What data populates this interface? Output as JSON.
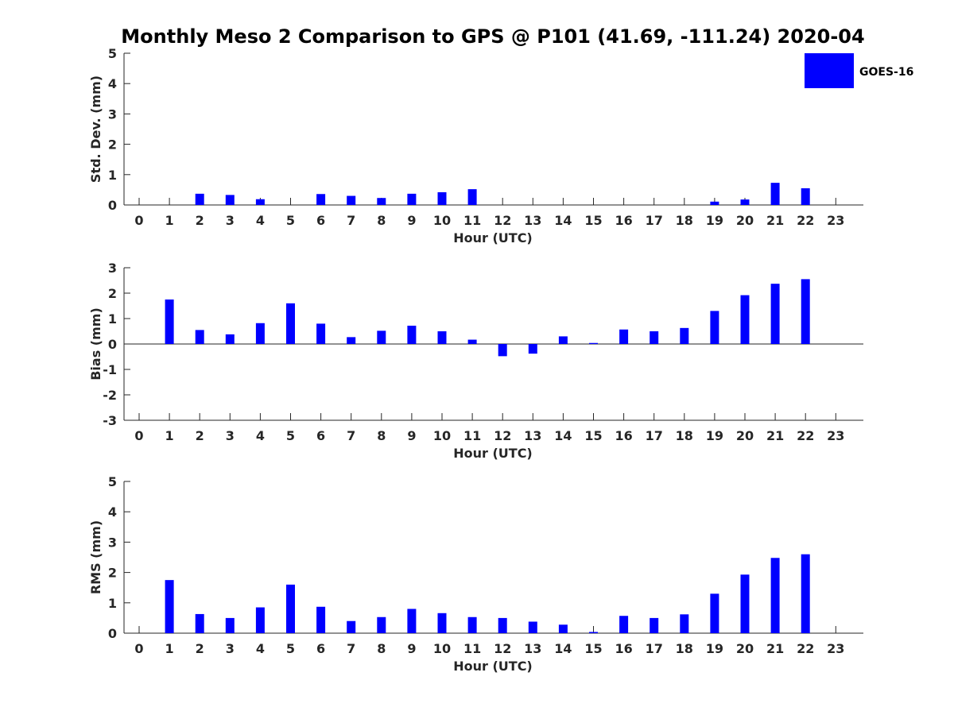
{
  "figure": {
    "title": "Monthly Meso 2 Comparison to GPS @ P101 (41.69, -111.24) 2020-04"
  },
  "legend": {
    "label": "GOES-16",
    "color": "#0000ff",
    "placement": "top-right"
  },
  "chart_data": [
    {
      "type": "bar",
      "name": "std-dev",
      "xlabel": "Hour (UTC)",
      "ylabel": "Std. Dev. (mm)",
      "ylim": [
        0,
        5
      ],
      "yticks": [
        0,
        1,
        2,
        3,
        4,
        5
      ],
      "categories": [
        "0",
        "1",
        "2",
        "3",
        "4",
        "5",
        "6",
        "7",
        "8",
        "9",
        "10",
        "11",
        "12",
        "13",
        "14",
        "15",
        "16",
        "17",
        "18",
        "19",
        "20",
        "21",
        "22",
        "23"
      ],
      "series": [
        {
          "name": "GOES-16",
          "values": [
            null,
            null,
            0.37,
            0.33,
            0.19,
            null,
            0.36,
            0.3,
            0.23,
            0.37,
            0.42,
            0.52,
            null,
            null,
            null,
            null,
            null,
            null,
            null,
            0.11,
            0.18,
            0.73,
            0.55,
            null
          ]
        }
      ]
    },
    {
      "type": "bar",
      "name": "bias",
      "xlabel": "Hour (UTC)",
      "ylabel": "Bias (mm)",
      "ylim": [
        -3,
        3
      ],
      "yticks": [
        -3,
        -2,
        -1,
        0,
        1,
        2,
        3
      ],
      "zero_line": true,
      "categories": [
        "0",
        "1",
        "2",
        "3",
        "4",
        "5",
        "6",
        "7",
        "8",
        "9",
        "10",
        "11",
        "12",
        "13",
        "14",
        "15",
        "16",
        "17",
        "18",
        "19",
        "20",
        "21",
        "22",
        "23"
      ],
      "series": [
        {
          "name": "GOES-16",
          "values": [
            null,
            1.75,
            0.55,
            0.38,
            0.82,
            1.6,
            0.8,
            0.27,
            0.52,
            0.72,
            0.5,
            0.17,
            -0.48,
            -0.38,
            0.3,
            0.04,
            0.57,
            0.5,
            0.63,
            1.3,
            1.92,
            2.37,
            2.55,
            null
          ]
        }
      ]
    },
    {
      "type": "bar",
      "name": "rms",
      "xlabel": "Hour (UTC)",
      "ylabel": "RMS (mm)",
      "ylim": [
        0,
        5
      ],
      "yticks": [
        0,
        1,
        2,
        3,
        4,
        5
      ],
      "categories": [
        "0",
        "1",
        "2",
        "3",
        "4",
        "5",
        "6",
        "7",
        "8",
        "9",
        "10",
        "11",
        "12",
        "13",
        "14",
        "15",
        "16",
        "17",
        "18",
        "19",
        "20",
        "21",
        "22",
        "23"
      ],
      "series": [
        {
          "name": "GOES-16",
          "values": [
            null,
            1.75,
            0.63,
            0.5,
            0.85,
            1.6,
            0.87,
            0.4,
            0.53,
            0.8,
            0.66,
            0.53,
            0.5,
            0.38,
            0.28,
            0.04,
            0.57,
            0.5,
            0.62,
            1.3,
            1.93,
            2.48,
            2.6,
            null
          ]
        }
      ]
    }
  ]
}
